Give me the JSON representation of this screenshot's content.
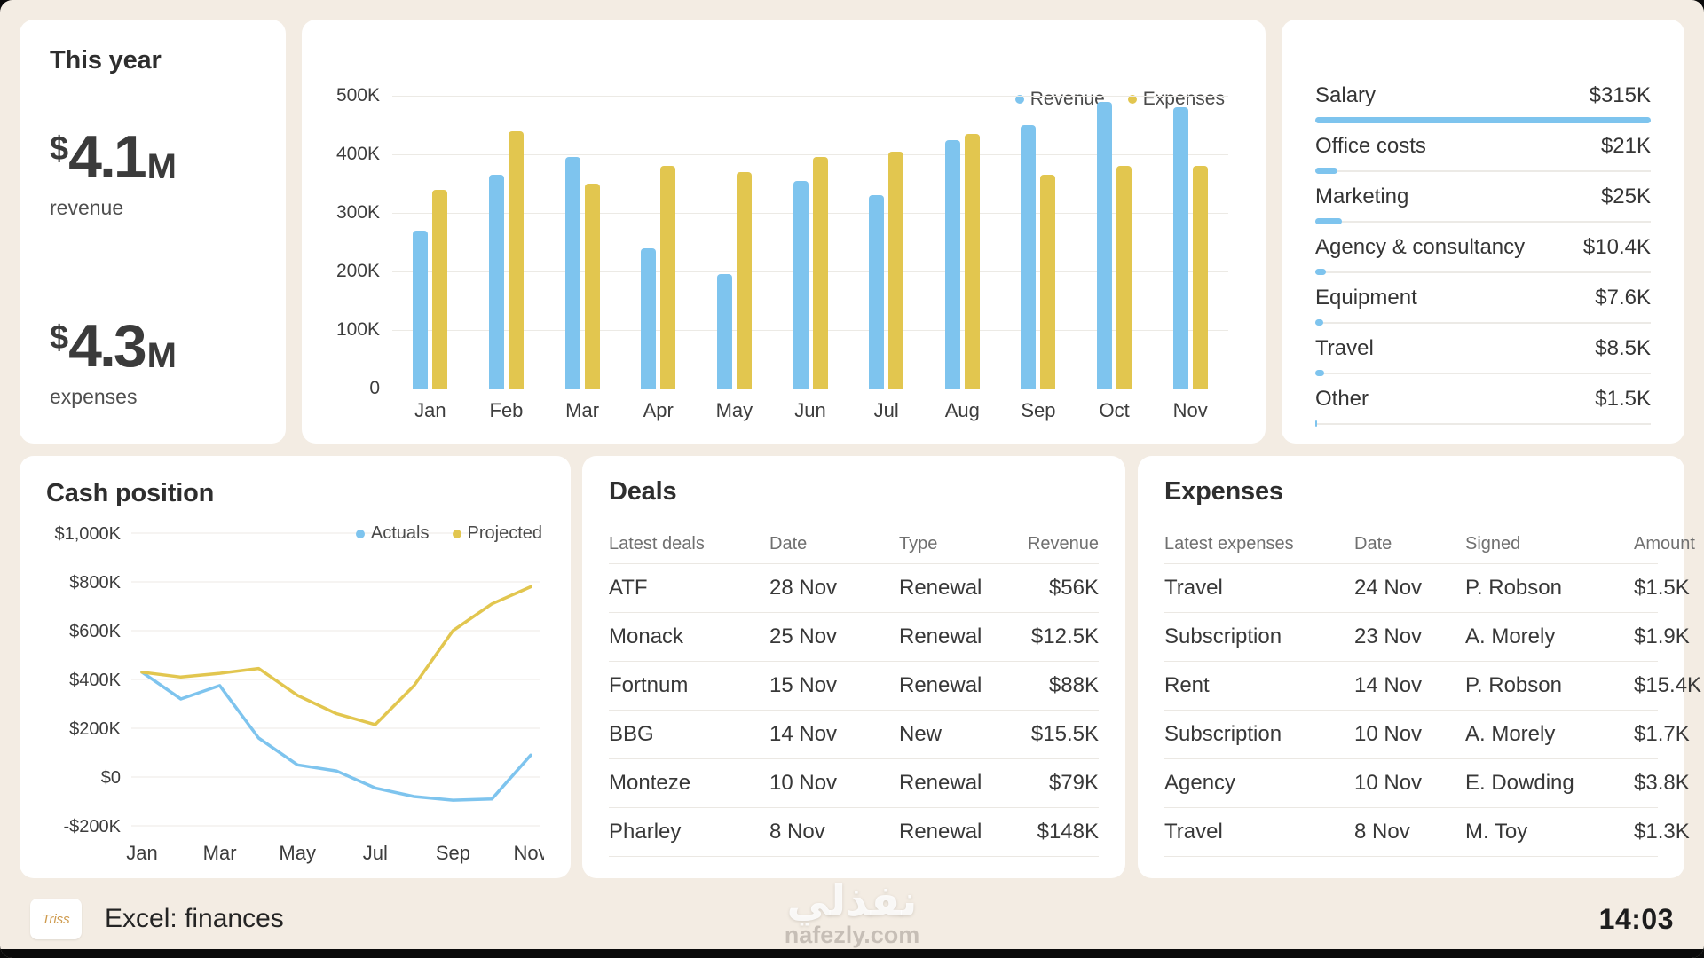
{
  "page": {
    "background": "#F3ECE3",
    "accent_blue": "#7EC4EE",
    "accent_yellow": "#E2C64F"
  },
  "this_year": {
    "title": "This year",
    "metrics": [
      {
        "prefix": "$",
        "value": "4.1",
        "suffix": "M",
        "label": "revenue"
      },
      {
        "prefix": "$",
        "value": "4.3",
        "suffix": "M",
        "label": "expenses"
      }
    ]
  },
  "chart_data": [
    {
      "type": "bar",
      "title": "",
      "categories": [
        "Jan",
        "Feb",
        "Mar",
        "Apr",
        "May",
        "Jun",
        "Jul",
        "Aug",
        "Sep",
        "Oct",
        "Nov"
      ],
      "series": [
        {
          "name": "Revenue",
          "color": "#7EC4EE",
          "values": [
            270,
            365,
            395,
            240,
            195,
            355,
            330,
            425,
            450,
            490,
            480
          ]
        },
        {
          "name": "Expenses",
          "color": "#E2C64F",
          "values": [
            340,
            440,
            350,
            380,
            370,
            395,
            405,
            435,
            365,
            380,
            380
          ]
        }
      ],
      "ylim": [
        0,
        500
      ],
      "yticks": [
        "500K",
        "400K",
        "300K",
        "200K",
        "100K",
        "0"
      ],
      "unit": "K",
      "grid": true,
      "legend_position": "top-right"
    },
    {
      "type": "line",
      "title": "Cash position",
      "x": [
        "Jan",
        "Feb",
        "Mar",
        "Apr",
        "May",
        "Jun",
        "Jul",
        "Aug",
        "Sep",
        "Oct",
        "Nov"
      ],
      "xticks_shown": [
        "Jan",
        "Mar",
        "May",
        "Jul",
        "Sep",
        "Nov"
      ],
      "series": [
        {
          "name": "Actuals",
          "color": "#7EC4EE",
          "values": [
            430,
            320,
            375,
            160,
            50,
            25,
            -45,
            -80,
            -95,
            -90,
            90
          ]
        },
        {
          "name": "Projected",
          "color": "#E2C64F",
          "values": [
            430,
            410,
            425,
            445,
            335,
            260,
            215,
            375,
            600,
            710,
            780
          ]
        }
      ],
      "ylim": [
        -200,
        1000
      ],
      "yticks": [
        "$1,000K",
        "$800K",
        "$600K",
        "$400K",
        "$200K",
        "$0",
        "-$200K"
      ],
      "unit": "K",
      "grid": true,
      "legend_position": "top-right"
    }
  ],
  "expense_breakdown": {
    "max_value": 315,
    "items": [
      {
        "label": "Salary",
        "amount": "$315K",
        "value": 315
      },
      {
        "label": "Office costs",
        "amount": "$21K",
        "value": 21
      },
      {
        "label": "Marketing",
        "amount": "$25K",
        "value": 25
      },
      {
        "label": "Agency & consultancy",
        "amount": "$10.4K",
        "value": 10.4
      },
      {
        "label": "Equipment",
        "amount": "$7.6K",
        "value": 7.6
      },
      {
        "label": "Travel",
        "amount": "$8.5K",
        "value": 8.5
      },
      {
        "label": "Other",
        "amount": "$1.5K",
        "value": 1.5
      }
    ]
  },
  "deals": {
    "title": "Deals",
    "columns": [
      "Latest deals",
      "Date",
      "Type",
      "Revenue"
    ],
    "rows": [
      [
        "ATF",
        "28 Nov",
        "Renewal",
        "$56K"
      ],
      [
        "Monack",
        "25 Nov",
        "Renewal",
        "$12.5K"
      ],
      [
        "Fortnum",
        "15 Nov",
        "Renewal",
        "$88K"
      ],
      [
        "BBG",
        "14 Nov",
        "New",
        "$15.5K"
      ],
      [
        "Monteze",
        "10 Nov",
        "Renewal",
        "$79K"
      ],
      [
        "Pharley",
        "8 Nov",
        "Renewal",
        "$148K"
      ]
    ]
  },
  "expenses_table": {
    "title": "Expenses",
    "columns": [
      "Latest expenses",
      "Date",
      "Signed",
      "Amount"
    ],
    "rows": [
      [
        "Travel",
        "24 Nov",
        "P. Robson",
        "$1.5K"
      ],
      [
        "Subscription",
        "23 Nov",
        "A. Morely",
        "$1.9K"
      ],
      [
        "Rent",
        "14 Nov",
        "P. Robson",
        "$15.4K"
      ],
      [
        "Subscription",
        "10 Nov",
        "A. Morely",
        "$1.7K"
      ],
      [
        "Agency",
        "10 Nov",
        "E. Dowding",
        "$3.8K"
      ],
      [
        "Travel",
        "8 Nov",
        "M. Toy",
        "$1.3K"
      ]
    ]
  },
  "taskbar": {
    "logo_text": "Triss",
    "app_label": "Excel: finances",
    "clock": "14:03"
  },
  "watermark": {
    "line1": "نفذلي",
    "line2": "nafezly.com"
  }
}
